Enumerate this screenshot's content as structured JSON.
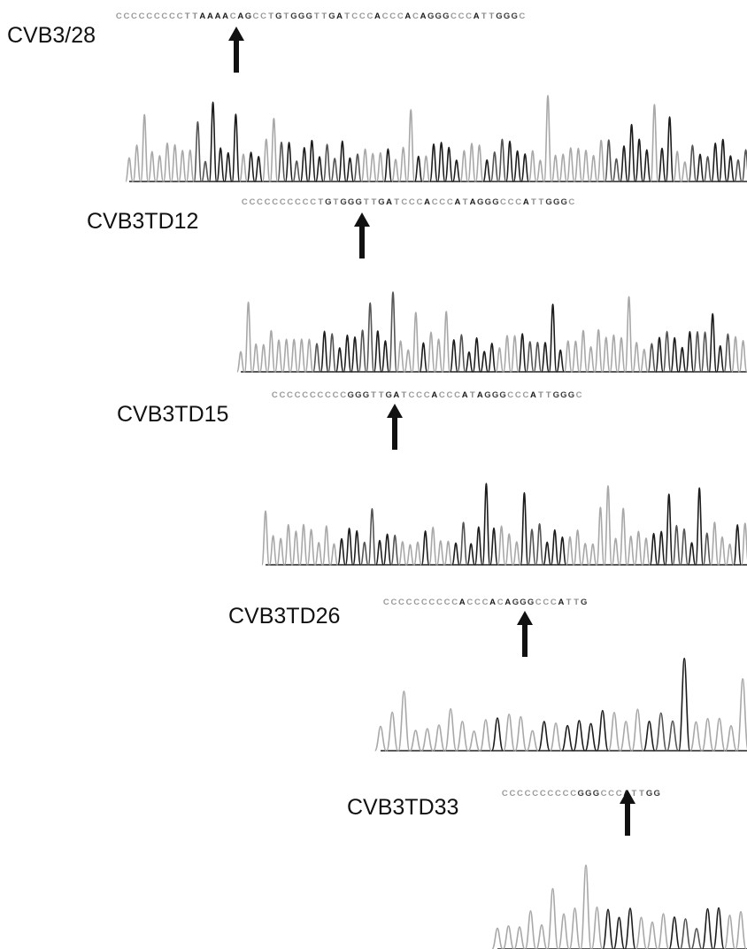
{
  "colors": {
    "C": "#9a9a9a",
    "T": "#8a8a8a",
    "A": "#1a1a1a",
    "G": "#3a3a3a",
    "trace_dark": "#1c1c1c",
    "trace_mid": "#555555",
    "trace_light": "#a8a8a8",
    "arrow": "#111111"
  },
  "panels": [
    {
      "id": "cvb3-28",
      "label": "CVB3/28",
      "sequence": "CCCCCCCCCTTAAAACAGCCTGTGGGTTGATCCCACCCACAGGGCCCATTGGGC",
      "arrow_index": 9
    },
    {
      "id": "cvb3td12",
      "label": "CVB3TD12",
      "sequence": "CCCCCCCCCCTGTGGGTTGATCCCACCCATAGGGCCCATTGGGC",
      "arrow_index": 9
    },
    {
      "id": "cvb3td15",
      "label": "CVB3TD15",
      "sequence": "CCCCCCCCCCGGGTTGATCCCACCCATAGGGCCCATTGGGC",
      "arrow_index": 10
    },
    {
      "id": "cvb3td26",
      "label": "CVB3TD26",
      "sequence": "CCCCCCCCCCACCCACAGGGCCCATTG",
      "arrow_index": 10
    },
    {
      "id": "cvb3td33",
      "label": "CVB3TD33",
      "sequence": "CCCCCCCCCCGGGCCCATTGG",
      "arrow_index": 10
    }
  ]
}
